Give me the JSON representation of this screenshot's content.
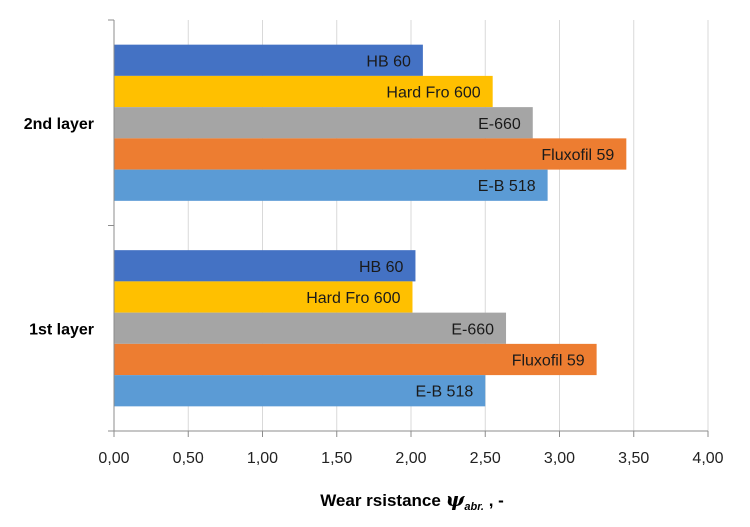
{
  "chart_data": {
    "type": "bar",
    "orientation": "horizontal",
    "categories": [
      "2nd layer",
      "1st layer"
    ],
    "series": [
      {
        "name": "HB 60",
        "color": "#4472c4",
        "values": [
          2.08,
          2.03
        ]
      },
      {
        "name": "Hard Fro 600",
        "color": "#ffc000",
        "values": [
          2.55,
          2.01
        ]
      },
      {
        "name": "E-660",
        "color": "#a5a5a5",
        "values": [
          2.82,
          2.64
        ]
      },
      {
        "name": "Fluxofil 59",
        "color": "#ed7d31",
        "values": [
          3.45,
          3.25
        ]
      },
      {
        "name": "E-B 518",
        "color": "#5b9bd5",
        "values": [
          2.92,
          2.5
        ]
      }
    ],
    "xlim": [
      0,
      4
    ],
    "xticks": [
      "0,00",
      "0,50",
      "1,00",
      "1,50",
      "2,00",
      "2,50",
      "3,00",
      "3,50",
      "4,00"
    ],
    "xlabel": {
      "text": "Wear rsistance ",
      "symbol": "ψ",
      "subscript": "abr.",
      "suffix": " , -"
    },
    "grid": "vertical",
    "legend": "none"
  }
}
